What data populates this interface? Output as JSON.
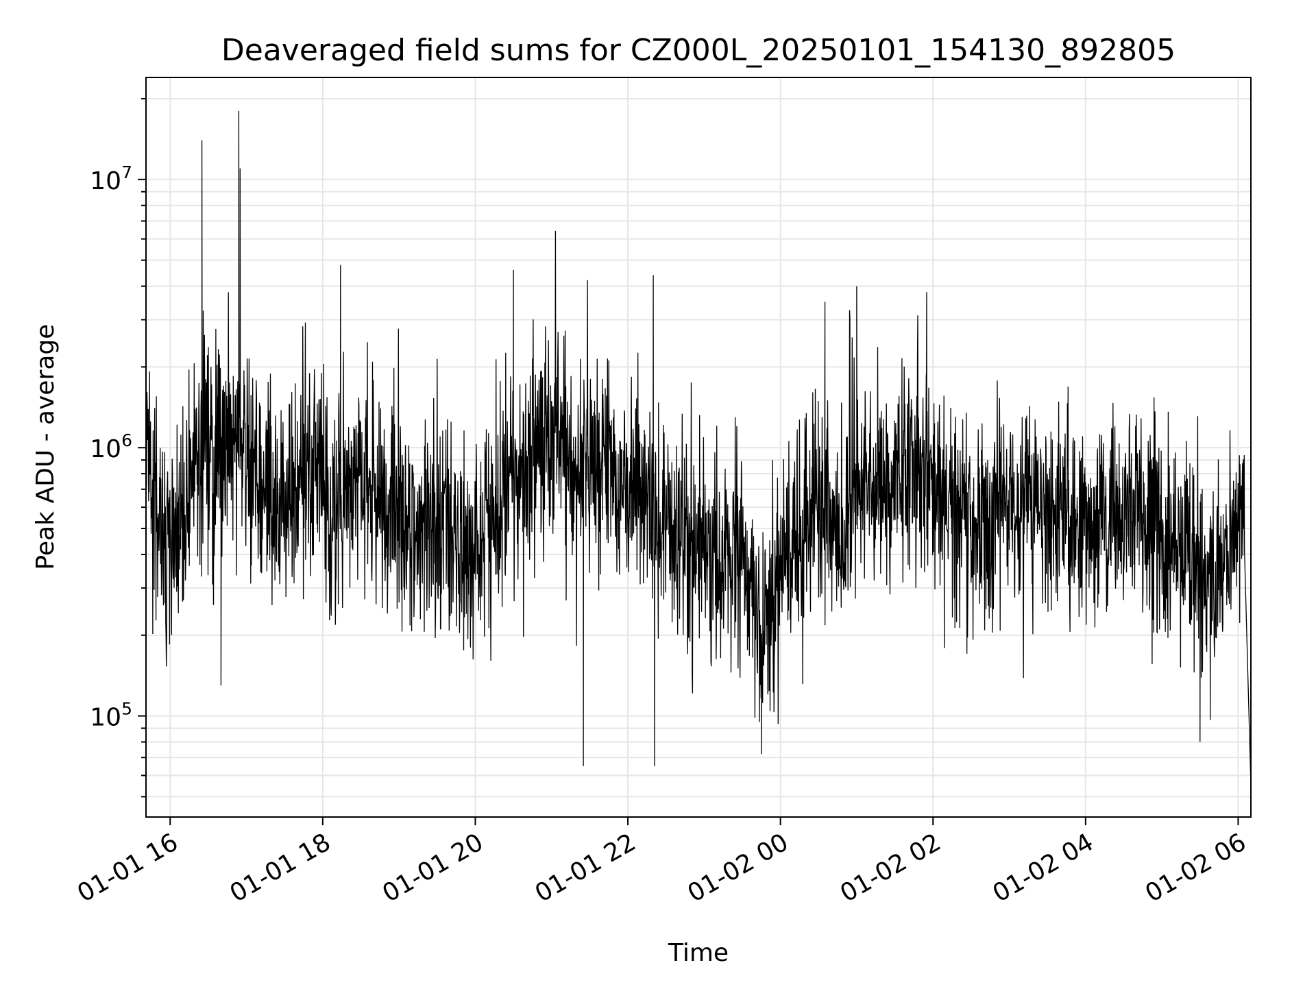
{
  "chart_data": {
    "type": "line",
    "title": "Deaveraged field sums for CZ000L_20250101_154130_892805",
    "xlabel": "Time",
    "ylabel": "Peak ADU - average",
    "y_scale": "log",
    "grid": true,
    "x_tick_labels": [
      "01-01 16",
      "01-01 18",
      "01-01 20",
      "01-01 22",
      "01-02 00",
      "01-02 02",
      "01-02 04",
      "01-02 06"
    ],
    "x_tick_times": [
      "2025-01-01 16:00",
      "2025-01-01 18:00",
      "2025-01-01 20:00",
      "2025-01-01 22:00",
      "2025-01-02 00:00",
      "2025-01-02 02:00",
      "2025-01-02 04:00",
      "2025-01-02 06:00"
    ],
    "xlim": [
      "2025-01-01 15:41",
      "2025-01-02 06:10"
    ],
    "y_ticks": [
      {
        "base": "10",
        "exp": "5",
        "value": 100000
      },
      {
        "base": "10",
        "exp": "6",
        "value": 1000000
      },
      {
        "base": "10",
        "exp": "7",
        "value": 10000000
      }
    ],
    "ylim": [
      42000,
      24000000
    ],
    "line_color": "#000000",
    "grid_color": "#e6e6e6",
    "series": [
      {
        "x": [
          "2025-01-01 15:41",
          "2025-01-01 15:48",
          "2025-01-01 15:56",
          "2025-01-01 16:04",
          "2025-01-01 16:13",
          "2025-01-01 16:22",
          "2025-01-01 16:26",
          "2025-01-01 16:34",
          "2025-01-01 16:42",
          "2025-01-01 16:50",
          "2025-01-01 16:56",
          "2025-01-01 16:57",
          "2025-01-01 16:58",
          "2025-01-01 17:10",
          "2025-01-01 17:25",
          "2025-01-01 17:40",
          "2025-01-01 17:55",
          "2025-01-01 18:10",
          "2025-01-01 18:15",
          "2025-01-01 18:30",
          "2025-01-01 18:45",
          "2025-01-01 19:00",
          "2025-01-01 19:15",
          "2025-01-01 19:30",
          "2025-01-01 19:45",
          "2025-01-01 20:00",
          "2025-01-01 20:15",
          "2025-01-01 20:30",
          "2025-01-01 20:45",
          "2025-01-01 21:00",
          "2025-01-01 21:15",
          "2025-01-01 21:25",
          "2025-01-01 21:40",
          "2025-01-01 21:55",
          "2025-01-01 22:10",
          "2025-01-01 22:22",
          "2025-01-01 22:35",
          "2025-01-01 22:50",
          "2025-01-01 23:05",
          "2025-01-01 23:20",
          "2025-01-01 23:35",
          "2025-01-01 23:45",
          "2025-01-02 00:00",
          "2025-01-02 00:15",
          "2025-01-02 00:30",
          "2025-01-02 00:45",
          "2025-01-02 01:00",
          "2025-01-02 01:15",
          "2025-01-02 01:30",
          "2025-01-02 01:45",
          "2025-01-02 02:00",
          "2025-01-02 02:15",
          "2025-01-02 02:30",
          "2025-01-02 02:45",
          "2025-01-02 03:00",
          "2025-01-02 03:15",
          "2025-01-02 03:30",
          "2025-01-02 03:45",
          "2025-01-02 04:00",
          "2025-01-02 04:15",
          "2025-01-02 04:30",
          "2025-01-02 04:45",
          "2025-01-02 05:00",
          "2025-01-02 05:15",
          "2025-01-02 05:30",
          "2025-01-02 05:45",
          "2025-01-02 06:00",
          "2025-01-02 06:05",
          "2025-01-02 06:10"
        ],
        "y": [
          900000,
          700000,
          400000,
          500000,
          600000,
          900000,
          1000000,
          800000,
          900000,
          1000000,
          1100000,
          1100000,
          900000,
          700000,
          550000,
          700000,
          900000,
          600000,
          700000,
          800000,
          650000,
          500000,
          450000,
          500000,
          450000,
          400000,
          550000,
          800000,
          900000,
          1000000,
          800000,
          900000,
          900000,
          800000,
          700000,
          600000,
          450000,
          400000,
          420000,
          400000,
          300000,
          200000,
          300000,
          500000,
          600000,
          500000,
          650000,
          700000,
          750000,
          900000,
          800000,
          600000,
          550000,
          550000,
          600000,
          600000,
          550000,
          550000,
          500000,
          550000,
          500000,
          550000,
          450000,
          450000,
          350000,
          300000,
          450000,
          600000,
          60000
        ],
        "spikes": [
          {
            "x": "2025-01-01 16:25",
            "y": 14000000
          },
          {
            "x": "2025-01-01 16:40",
            "y": 130000
          },
          {
            "x": "2025-01-01 16:54",
            "y": 18000000
          },
          {
            "x": "2025-01-01 16:55",
            "y": 11000000
          },
          {
            "x": "2025-01-01 18:14",
            "y": 4800000
          },
          {
            "x": "2025-01-01 20:30",
            "y": 4600000
          },
          {
            "x": "2025-01-01 21:25",
            "y": 65000
          },
          {
            "x": "2025-01-01 22:20",
            "y": 4400000
          },
          {
            "x": "2025-01-01 22:21",
            "y": 65000
          },
          {
            "x": "2025-01-01 23:45",
            "y": 72000
          },
          {
            "x": "2025-01-02 00:35",
            "y": 3500000
          },
          {
            "x": "2025-01-02 01:00",
            "y": 4000000
          },
          {
            "x": "2025-01-02 01:55",
            "y": 3800000
          },
          {
            "x": "2025-01-02 05:30",
            "y": 80000
          },
          {
            "x": "2025-01-02 06:10",
            "y": 55000
          }
        ]
      }
    ]
  }
}
